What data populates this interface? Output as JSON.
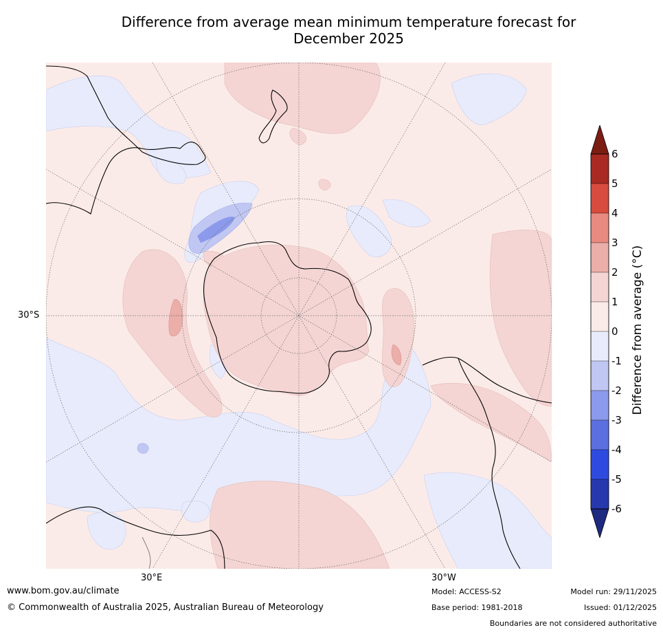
{
  "title": {
    "line1": "Difference from average mean minimum temperature forecast for",
    "line2": "December 2025"
  },
  "map": {
    "projection": "south polar stereographic",
    "labels": {
      "lat_30s": "30°S",
      "lon_30e": "30°E",
      "lon_30w": "30°W"
    },
    "colors": {
      "ocean_neutral_pos": "#fbebe8",
      "neg1": "#e8ebfb",
      "neg2": "#c0c7f2",
      "neg3": "#8c9aeb",
      "pos1": "#f4d5d3",
      "pos2": "#ebaea9",
      "coast": "#000000"
    }
  },
  "legend": {
    "title": "Difference from average (°C)",
    "ticks": [
      "6",
      "5",
      "4",
      "3",
      "2",
      "1",
      "0",
      "-1",
      "-2",
      "-3",
      "-4",
      "-5",
      "-6"
    ],
    "bins": [
      {
        "range": ">6",
        "color": "#7c1d14"
      },
      {
        "range": "5 to 6",
        "color": "#a82a22"
      },
      {
        "range": "4 to 5",
        "color": "#d84b3f"
      },
      {
        "range": "3 to 4",
        "color": "#e88a80"
      },
      {
        "range": "2 to 3",
        "color": "#ebaea9"
      },
      {
        "range": "1 to 2",
        "color": "#f4d5d3"
      },
      {
        "range": "0 to 1",
        "color": "#fbebe8"
      },
      {
        "range": "-1 to 0",
        "color": "#e8ebfb"
      },
      {
        "range": "-2 to -1",
        "color": "#c0c7f2"
      },
      {
        "range": "-3 to -2",
        "color": "#8c9aeb"
      },
      {
        "range": "-4 to -3",
        "color": "#5b6fe0"
      },
      {
        "range": "-5 to -4",
        "color": "#2f4bdf"
      },
      {
        "range": "-6 to -5",
        "color": "#2738ad"
      },
      {
        "range": "<-6",
        "color": "#1e2a80"
      }
    ]
  },
  "footer": {
    "url": "www.bom.gov.au/climate",
    "copyright": "© Commonwealth of Australia 2025, Australian Bureau of Meteorology",
    "model": "Model: ACCESS-S2",
    "base_period": "Base period: 1981-2018",
    "model_run": "Model run: 29/11/2025",
    "issued": "Issued: 01/12/2025",
    "disclaimer": "Boundaries are not considered authoritative"
  }
}
